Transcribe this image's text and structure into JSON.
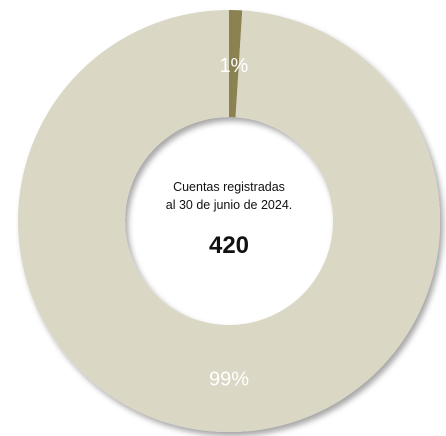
{
  "chart_data": {
    "type": "pie",
    "variant": "donut",
    "slices": [
      {
        "label": "1%",
        "value": 1,
        "color": "#8c8151"
      },
      {
        "label": "99%",
        "value": 99,
        "color": "#dbd7c5"
      }
    ],
    "center": {
      "line1": "Cuentas registradas",
      "line2": "al 30 de junio de 2024.",
      "total": "420"
    },
    "legend": "none"
  }
}
